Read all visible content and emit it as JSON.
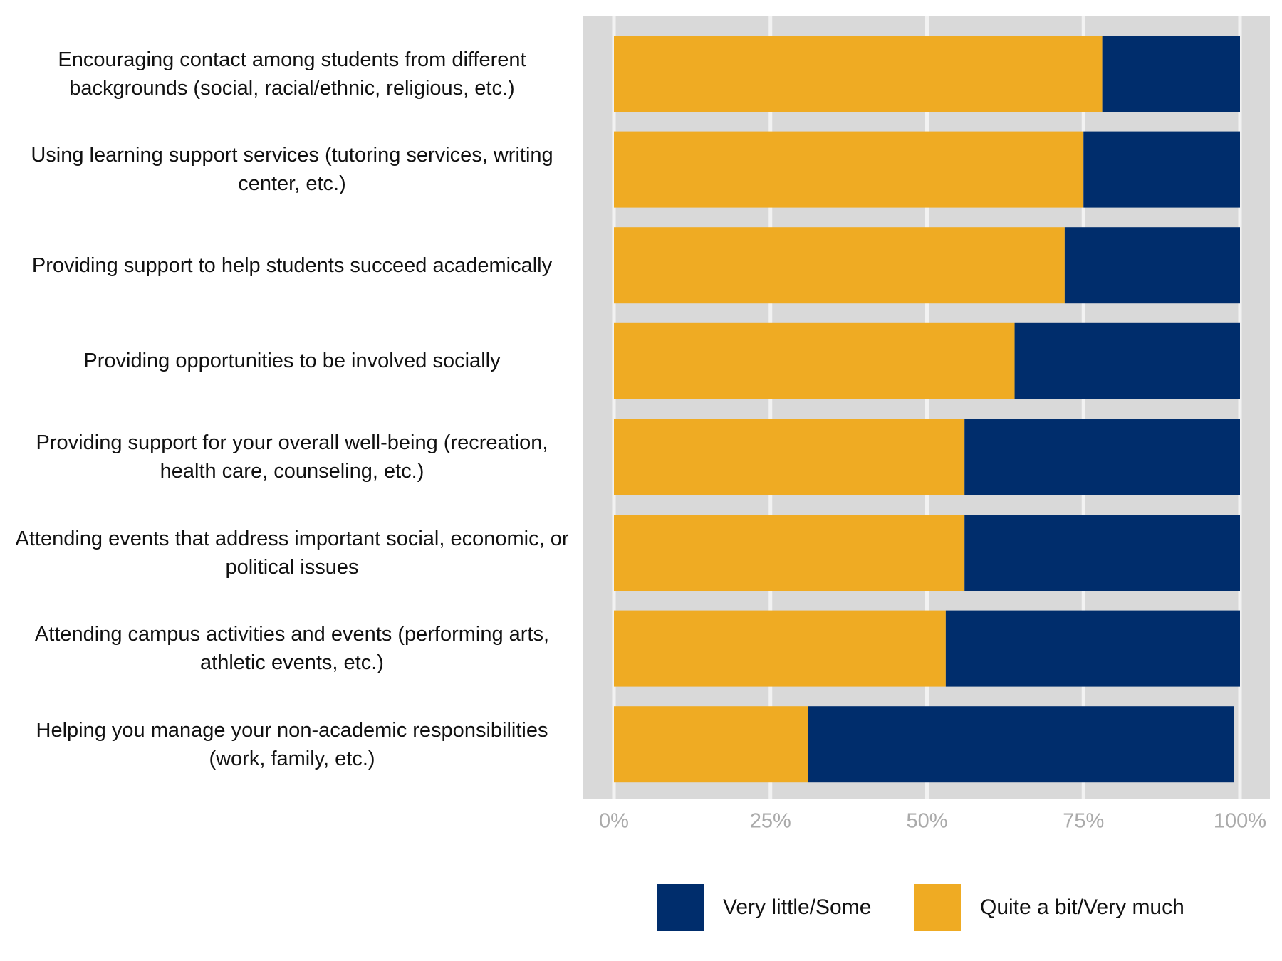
{
  "chart_data": {
    "type": "stacked-bar-horizontal",
    "categories": [
      "Encouraging contact among students from different backgrounds (social, racial/ethnic, religious, etc.)",
      "Using learning support services (tutoring services, writing center, etc.)",
      "Providing support to help students succeed academically",
      "Providing opportunities to be involved socially",
      "Providing support for your overall well-being (recreation, health care, counseling, etc.)",
      "Attending events that address important social, economic, or political issues",
      "Attending campus activities and events (performing arts, athletic events, etc.)",
      "Helping you manage your non-academic responsibilities (work, family, etc.)"
    ],
    "series": [
      {
        "name": "Very little/Some",
        "color": "#002d6c",
        "values": [
          22,
          25,
          28,
          36,
          44,
          44,
          47,
          68
        ]
      },
      {
        "name": "Quite a bit/Very much",
        "color": "#efab23",
        "values": [
          78,
          75,
          72,
          64,
          56,
          56,
          53,
          31
        ]
      }
    ],
    "xlim": [
      0,
      100
    ],
    "xticks": [
      {
        "value": 0,
        "label": "0%"
      },
      {
        "value": 25,
        "label": "25%"
      },
      {
        "value": 50,
        "label": "50%"
      },
      {
        "value": 75,
        "label": "75%"
      },
      {
        "value": 100,
        "label": "100%"
      }
    ],
    "grid": true,
    "legend": "bottom"
  }
}
